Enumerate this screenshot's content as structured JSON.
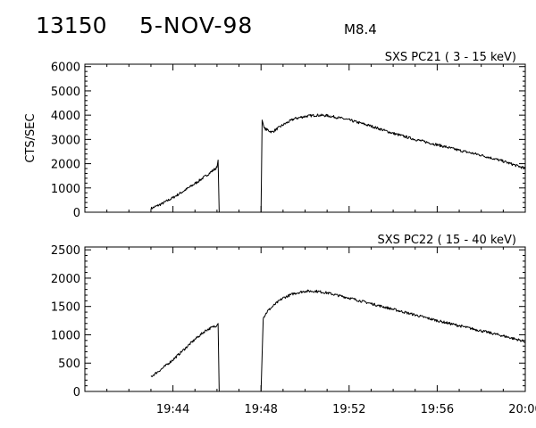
{
  "header": {
    "event_id": "13150",
    "date": "5-NOV-98",
    "flare_class": "M8.4"
  },
  "chart_data": [
    {
      "type": "line",
      "title": "SXS PC21  (  3 - 15 keV)",
      "ylabel": "CTS/SEC",
      "xlabel": "",
      "xlim": [
        "19:40",
        "20:00"
      ],
      "ylim": [
        0,
        6100
      ],
      "yticks": [
        0,
        1000,
        2000,
        3000,
        4000,
        5000,
        6000
      ],
      "xtick_labels": [],
      "grid": false,
      "color": "#000000",
      "segments": [
        {
          "x": [
            "19:43.00",
            "19:43.50",
            "19:44.00",
            "19:44.50",
            "19:45.00",
            "19:45.50",
            "19:46.00",
            "19:46.05",
            "19:46.10"
          ],
          "y": [
            150,
            350,
            600,
            880,
            1180,
            1500,
            1850,
            2150,
            0
          ]
        },
        {
          "x": [
            "19:48.00",
            "19:48.05",
            "19:48.15",
            "19:48.50",
            "19:49.00",
            "19:49.50",
            "19:50.00",
            "19:50.50",
            "19:51.00",
            "19:51.50",
            "19:52.00",
            "19:53.00",
            "19:54.00",
            "19:55.00",
            "19:56.00",
            "19:57.00",
            "19:58.00",
            "19:59.00",
            "20:00.00"
          ],
          "y": [
            0,
            3800,
            3450,
            3300,
            3600,
            3850,
            3950,
            4000,
            3980,
            3900,
            3800,
            3550,
            3250,
            3000,
            2780,
            2550,
            2350,
            2100,
            1800
          ]
        }
      ]
    },
    {
      "type": "line",
      "title": "SXS PC22  ( 15 - 40 keV)",
      "ylabel": "",
      "xlabel": "",
      "xlim": [
        "19:40",
        "20:00"
      ],
      "ylim": [
        0,
        2550
      ],
      "yticks": [
        0,
        500,
        1000,
        1500,
        2000,
        2500
      ],
      "xtick_labels": [
        "19:44",
        "19:48",
        "19:52",
        "19:56",
        "20:00"
      ],
      "grid": false,
      "color": "#000000",
      "segments": [
        {
          "x": [
            "19:43.00",
            "19:43.50",
            "19:44.00",
            "19:44.50",
            "19:45.00",
            "19:45.50",
            "19:46.00",
            "19:46.05",
            "19:46.10"
          ],
          "y": [
            260,
            400,
            560,
            740,
            920,
            1080,
            1170,
            1200,
            0
          ]
        },
        {
          "x": [
            "19:48.00",
            "19:48.10",
            "19:48.30",
            "19:48.70",
            "19:49.00",
            "19:49.50",
            "19:50.00",
            "19:50.50",
            "19:51.00",
            "19:52.00",
            "19:53.00",
            "19:54.00",
            "19:55.00",
            "19:56.00",
            "19:57.00",
            "19:58.00",
            "19:59.00",
            "20:00.00"
          ],
          "y": [
            0,
            1300,
            1420,
            1560,
            1650,
            1730,
            1770,
            1770,
            1740,
            1650,
            1550,
            1450,
            1350,
            1250,
            1160,
            1070,
            980,
            880
          ]
        }
      ]
    }
  ]
}
